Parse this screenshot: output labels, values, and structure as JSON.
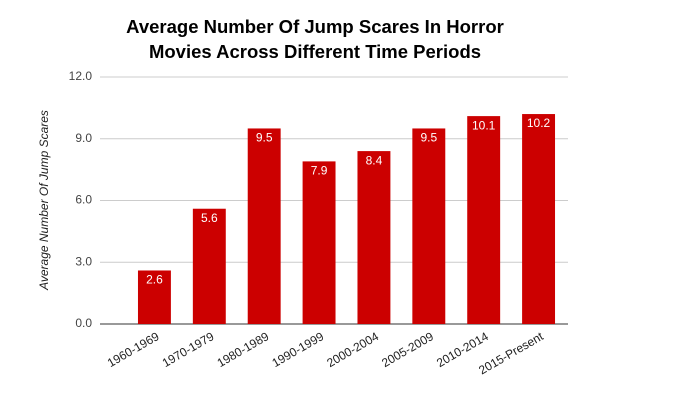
{
  "chart_data": {
    "type": "bar",
    "title": "Average Number Of Jump Scares In Horror Movies Across Different Time Periods",
    "y_label": "Average Number Of Jump Scares",
    "categories": [
      "1960-1969",
      "1970-1979",
      "1980-1989",
      "1990-1999",
      "2000-2004",
      "2005-2009",
      "2010-2014",
      "2015-Present"
    ],
    "values": [
      2.6,
      5.6,
      9.5,
      7.9,
      8.4,
      9.5,
      10.1,
      10.2
    ],
    "color": "#cc0000",
    "ylim": [
      0,
      12
    ],
    "yticks": [
      {
        "value": 0,
        "label": "0.0"
      },
      {
        "value": 3,
        "label": "3.0"
      },
      {
        "value": 6,
        "label": "6.0"
      },
      {
        "value": 9,
        "label": "9.0"
      },
      {
        "value": 12,
        "label": "12.0"
      }
    ],
    "grid": true
  }
}
